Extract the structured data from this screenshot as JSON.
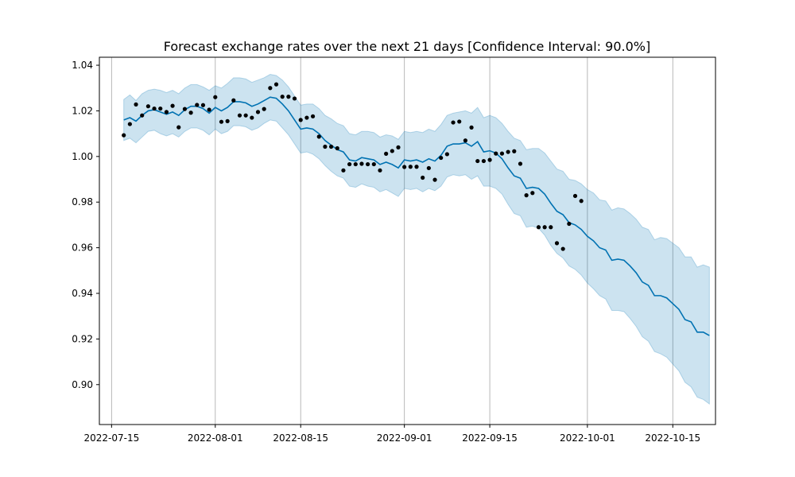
{
  "chart_data": {
    "type": "line",
    "title": "Forecast exchange rates over the next 21 days [Confidence Interval: 90.0%]",
    "xlabel": "",
    "ylabel": "",
    "x_start_date": "2022-07-17",
    "x_range": [
      "2022-07-13",
      "2022-10-22"
    ],
    "ylim": [
      0.8825,
      1.0435
    ],
    "x_ticks": [
      "2022-07-15",
      "2022-08-01",
      "2022-08-15",
      "2022-09-01",
      "2022-09-15",
      "2022-10-01",
      "2022-10-15"
    ],
    "y_ticks": [
      0.9,
      0.92,
      0.94,
      0.96,
      0.98,
      1.0,
      1.02,
      1.04
    ],
    "y_tick_labels": [
      "0.90",
      "0.92",
      "0.94",
      "0.96",
      "0.98",
      "1.00",
      "1.02",
      "1.04"
    ],
    "grid": "vertical",
    "colors": {
      "line": "#0072b2",
      "band": "#0072b2",
      "points": "#000000"
    },
    "series": [
      {
        "kind": "observed",
        "x": [
          "2022-07-17",
          "2022-07-18",
          "2022-07-19",
          "2022-07-20",
          "2022-07-21",
          "2022-07-22",
          "2022-07-23",
          "2022-07-24",
          "2022-07-25",
          "2022-07-26",
          "2022-07-27",
          "2022-07-28",
          "2022-07-29",
          "2022-07-30",
          "2022-07-31",
          "2022-08-01",
          "2022-08-02",
          "2022-08-03",
          "2022-08-04",
          "2022-08-05",
          "2022-08-06",
          "2022-08-07",
          "2022-08-08",
          "2022-08-09",
          "2022-08-10",
          "2022-08-11",
          "2022-08-12",
          "2022-08-13",
          "2022-08-14",
          "2022-08-15",
          "2022-08-16",
          "2022-08-17",
          "2022-08-18",
          "2022-08-19",
          "2022-08-20",
          "2022-08-21",
          "2022-08-22",
          "2022-08-23",
          "2022-08-24",
          "2022-08-25",
          "2022-08-26",
          "2022-08-27",
          "2022-08-28",
          "2022-08-29",
          "2022-08-30",
          "2022-08-31",
          "2022-09-01",
          "2022-09-02",
          "2022-09-03",
          "2022-09-04",
          "2022-09-05",
          "2022-09-06",
          "2022-09-07",
          "2022-09-08",
          "2022-09-09",
          "2022-09-10",
          "2022-09-11",
          "2022-09-12",
          "2022-09-13",
          "2022-09-14",
          "2022-09-15",
          "2022-09-16",
          "2022-09-17",
          "2022-09-18",
          "2022-09-19",
          "2022-09-20",
          "2022-09-21",
          "2022-09-22",
          "2022-09-23",
          "2022-09-24",
          "2022-09-25",
          "2022-09-26",
          "2022-09-27",
          "2022-09-28",
          "2022-09-29",
          "2022-09-30"
        ],
        "values": [
          1.0093,
          1.0142,
          1.0228,
          1.018,
          1.022,
          1.021,
          1.021,
          1.0195,
          1.0222,
          1.0128,
          1.0208,
          1.0192,
          1.0226,
          1.0225,
          1.0205,
          1.026,
          1.0152,
          1.0155,
          1.0246,
          1.018,
          1.018,
          1.017,
          1.0195,
          1.0208,
          1.03,
          1.0316,
          1.0262,
          1.0262,
          1.0254,
          1.016,
          1.017,
          1.0176,
          1.0087,
          1.0043,
          1.0043,
          1.0036,
          0.9939,
          0.9966,
          0.9966,
          0.9968,
          0.9966,
          0.9966,
          0.9939,
          1.0012,
          1.0024,
          1.004,
          0.9954,
          0.9955,
          0.9955,
          0.9907,
          0.9949,
          0.9898,
          0.9994,
          1.001,
          1.0149,
          1.0153,
          1.007,
          1.0127,
          0.998,
          0.998,
          0.9985,
          1.0013,
          1.0013,
          1.002,
          1.0023,
          0.9968,
          0.983,
          0.984,
          0.969,
          0.969,
          0.969,
          0.962,
          0.9595,
          0.9705,
          0.9827,
          0.9805
        ]
      },
      {
        "kind": "forecast",
        "x": [
          "2022-07-17",
          "2022-07-18",
          "2022-07-19",
          "2022-07-20",
          "2022-07-21",
          "2022-07-22",
          "2022-07-23",
          "2022-07-24",
          "2022-07-25",
          "2022-07-26",
          "2022-07-27",
          "2022-07-28",
          "2022-07-29",
          "2022-07-30",
          "2022-07-31",
          "2022-08-01",
          "2022-08-02",
          "2022-08-03",
          "2022-08-04",
          "2022-08-05",
          "2022-08-06",
          "2022-08-07",
          "2022-08-08",
          "2022-08-09",
          "2022-08-10",
          "2022-08-11",
          "2022-08-12",
          "2022-08-13",
          "2022-08-14",
          "2022-08-15",
          "2022-08-16",
          "2022-08-17",
          "2022-08-18",
          "2022-08-19",
          "2022-08-20",
          "2022-08-21",
          "2022-08-22",
          "2022-08-23",
          "2022-08-24",
          "2022-08-25",
          "2022-08-26",
          "2022-08-27",
          "2022-08-28",
          "2022-08-29",
          "2022-08-30",
          "2022-08-31",
          "2022-09-01",
          "2022-09-02",
          "2022-09-03",
          "2022-09-04",
          "2022-09-05",
          "2022-09-06",
          "2022-09-07",
          "2022-09-08",
          "2022-09-09",
          "2022-09-10",
          "2022-09-11",
          "2022-09-12",
          "2022-09-13",
          "2022-09-14",
          "2022-09-15",
          "2022-09-16",
          "2022-09-17",
          "2022-09-18",
          "2022-09-19",
          "2022-09-20",
          "2022-09-21",
          "2022-09-22",
          "2022-09-23",
          "2022-09-24",
          "2022-09-25",
          "2022-09-26",
          "2022-09-27",
          "2022-09-28",
          "2022-09-29",
          "2022-09-30",
          "2022-10-01",
          "2022-10-02",
          "2022-10-03",
          "2022-10-04",
          "2022-10-05",
          "2022-10-06",
          "2022-10-07",
          "2022-10-08",
          "2022-10-09",
          "2022-10-10",
          "2022-10-11",
          "2022-10-12",
          "2022-10-13",
          "2022-10-14",
          "2022-10-15",
          "2022-10-16",
          "2022-10-17",
          "2022-10-18",
          "2022-10-19",
          "2022-10-20",
          "2022-10-21"
        ],
        "values": [
          1.016,
          1.017,
          1.0155,
          1.018,
          1.02,
          1.0205,
          1.0195,
          1.0185,
          1.0195,
          1.018,
          1.0205,
          1.022,
          1.022,
          1.021,
          1.019,
          1.0215,
          1.02,
          1.0215,
          1.024,
          1.024,
          1.0235,
          1.022,
          1.023,
          1.0245,
          1.026,
          1.0255,
          1.023,
          1.02,
          1.016,
          1.012,
          1.0125,
          1.012,
          1.01,
          1.007,
          1.005,
          1.003,
          1.002,
          0.9985,
          0.998,
          0.9995,
          0.999,
          0.9985,
          0.9965,
          0.9975,
          0.9965,
          0.995,
          0.9985,
          0.998,
          0.9985,
          0.9975,
          0.999,
          0.998,
          1.0005,
          1.0045,
          1.0055,
          1.0055,
          1.006,
          1.0045,
          1.0065,
          1.002,
          1.0025,
          1.0015,
          0.999,
          0.995,
          0.9915,
          0.9905,
          0.986,
          0.9865,
          0.986,
          0.9835,
          0.9795,
          0.976,
          0.9745,
          0.971,
          0.97,
          0.968,
          0.965,
          0.963,
          0.96,
          0.959,
          0.9545,
          0.955,
          0.9545,
          0.952,
          0.949,
          0.945,
          0.9435,
          0.939,
          0.939,
          0.938,
          0.9355,
          0.933,
          0.9285,
          0.9275,
          0.923,
          0.923,
          0.9215
        ]
      },
      {
        "kind": "interval_upper",
        "values": [
          1.025,
          1.027,
          1.0245,
          1.0275,
          1.029,
          1.0295,
          1.029,
          1.028,
          1.029,
          1.0275,
          1.03,
          1.0315,
          1.0315,
          1.0305,
          1.029,
          1.031,
          1.03,
          1.032,
          1.0345,
          1.0345,
          1.034,
          1.0325,
          1.0335,
          1.0345,
          1.036,
          1.0355,
          1.0335,
          1.0305,
          1.0265,
          1.0225,
          1.023,
          1.023,
          1.021,
          1.018,
          1.0165,
          1.0145,
          1.0135,
          1.01,
          1.0095,
          1.011,
          1.011,
          1.0105,
          1.0085,
          1.0095,
          1.009,
          1.0075,
          1.011,
          1.0105,
          1.011,
          1.0105,
          1.012,
          1.011,
          1.014,
          1.018,
          1.019,
          1.0195,
          1.02,
          1.019,
          1.0215,
          1.017,
          1.018,
          1.017,
          1.0145,
          1.011,
          1.008,
          1.007,
          1.003,
          1.0035,
          1.0035,
          1.0015,
          0.998,
          0.9945,
          0.9935,
          0.99,
          0.9895,
          0.988,
          0.9855,
          0.984,
          0.981,
          0.9805,
          0.9765,
          0.9775,
          0.977,
          0.975,
          0.9725,
          0.969,
          0.968,
          0.9635,
          0.9645,
          0.964,
          0.962,
          0.96,
          0.956,
          0.956,
          0.9515,
          0.9525,
          0.9515
        ]
      },
      {
        "kind": "interval_lower",
        "values": [
          1.007,
          1.008,
          1.006,
          1.0085,
          1.011,
          1.0115,
          1.01,
          1.009,
          1.01,
          1.0085,
          1.011,
          1.0125,
          1.0125,
          1.0115,
          1.0095,
          1.012,
          1.01,
          1.011,
          1.0135,
          1.0135,
          1.013,
          1.0115,
          1.0125,
          1.0145,
          1.016,
          1.0155,
          1.0125,
          1.0095,
          1.0055,
          1.0015,
          1.002,
          1.001,
          0.999,
          0.996,
          0.9935,
          0.9915,
          0.9905,
          0.987,
          0.9865,
          0.988,
          0.987,
          0.9865,
          0.9845,
          0.9855,
          0.984,
          0.9825,
          0.986,
          0.9855,
          0.986,
          0.9845,
          0.986,
          0.985,
          0.987,
          0.991,
          0.992,
          0.9915,
          0.992,
          0.99,
          0.9915,
          0.987,
          0.987,
          0.986,
          0.9835,
          0.979,
          0.975,
          0.974,
          0.969,
          0.9695,
          0.9685,
          0.9655,
          0.961,
          0.9575,
          0.9555,
          0.952,
          0.9505,
          0.948,
          0.9445,
          0.942,
          0.939,
          0.9375,
          0.9325,
          0.9325,
          0.932,
          0.929,
          0.9255,
          0.921,
          0.919,
          0.9145,
          0.9135,
          0.912,
          0.909,
          0.906,
          0.901,
          0.899,
          0.8945,
          0.8935,
          0.8915
        ]
      }
    ]
  }
}
